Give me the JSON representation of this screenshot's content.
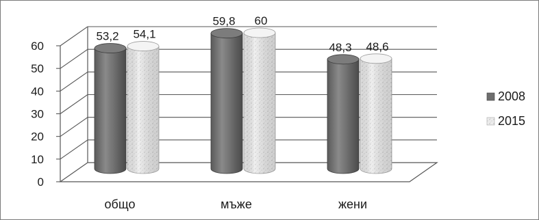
{
  "chart_data": {
    "type": "bar",
    "style": "3d-cylinder",
    "categories": [
      "общо",
      "мъже",
      "жени"
    ],
    "series": [
      {
        "name": "2008",
        "values": [
          53.2,
          59.8,
          48.3
        ],
        "labels": [
          "53,2",
          "59,8",
          "48,3"
        ],
        "color": "#6e6e6e"
      },
      {
        "name": "2015",
        "values": [
          54.1,
          60,
          48.6
        ],
        "labels": [
          "54,1",
          "60",
          "48,6"
        ],
        "color": "#e6e6e6"
      }
    ],
    "yticks": [
      0,
      10,
      20,
      30,
      40,
      50,
      60
    ],
    "ylim": [
      0,
      60
    ],
    "grid": true,
    "legend_position": "right",
    "title": "",
    "xlabel": "",
    "ylabel": ""
  }
}
